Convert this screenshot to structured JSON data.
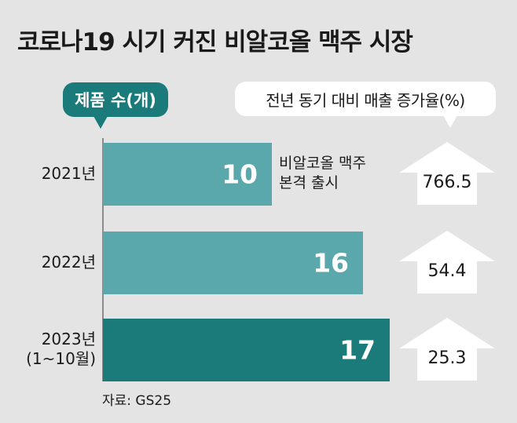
{
  "title": "코로나19 시기 커진 비알코올 맥주 시장",
  "colors": {
    "bar_light": "#5aa8ab",
    "bar_dark": "#1b7a7a",
    "legend_bg": "#1b7a7a"
  },
  "chart_data": {
    "type": "bar",
    "orientation": "horizontal",
    "categories": [
      "2021년",
      "2022년",
      "2023년 (1~10월)"
    ],
    "series": [
      {
        "name": "제품 수(개)",
        "values": [
          10,
          16,
          17
        ]
      },
      {
        "name": "전년 동기 대비 매출 증가율(%)",
        "values": [
          766.5,
          54.4,
          25.3
        ]
      }
    ],
    "legend_product": "제품 수(개)",
    "legend_growth": "전년 동기 대비 매출 증가율(%)",
    "year_labels": [
      [
        "2021년"
      ],
      [
        "2022년"
      ],
      [
        "2023년",
        "(1~10월)"
      ]
    ],
    "bar_labels": [
      "10",
      "16",
      "17"
    ],
    "growth_labels": [
      "766.5",
      "54.4",
      "25.3"
    ],
    "annotation": [
      "비알코올 맥주",
      "본격 출시"
    ],
    "xlim": [
      0,
      17
    ]
  },
  "source": "자료: GS25"
}
